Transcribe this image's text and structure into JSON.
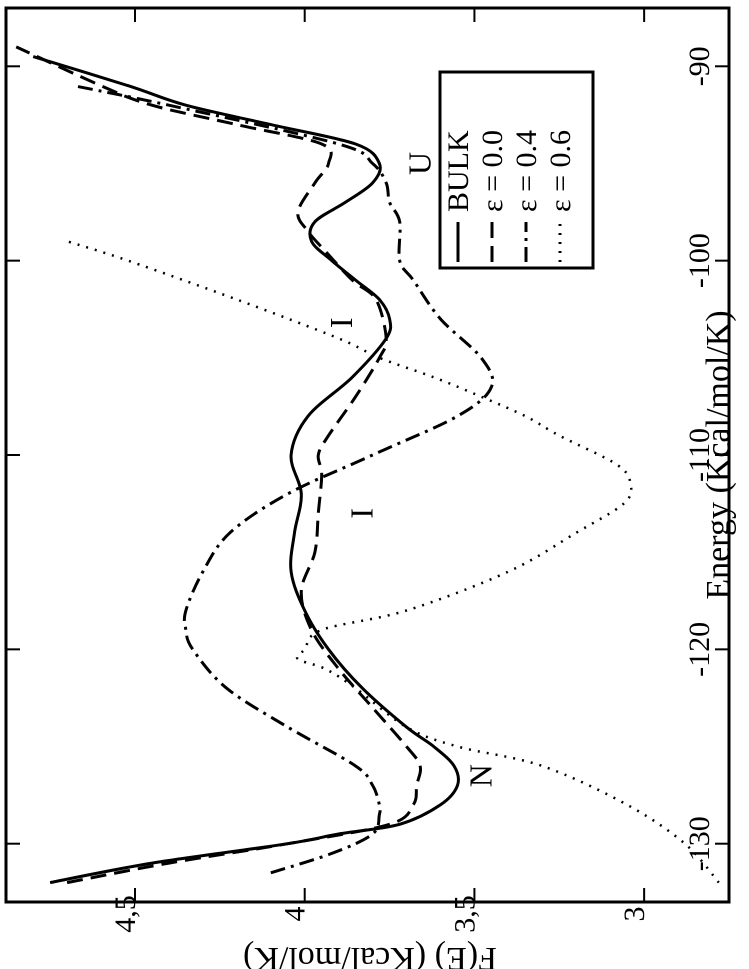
{
  "chart_data": {
    "type": "line",
    "orientation": "rotated-90-cw",
    "xlabel": "Energy (Kcal/mol/K)",
    "ylabel": "F(E) (Kcal/mol/K)",
    "xlim": [
      -133,
      -87
    ],
    "ylim": [
      2.75,
      4.88
    ],
    "x_ticks": [
      -130,
      -120,
      -110,
      -100,
      -90
    ],
    "y_ticks": [
      3,
      3.5,
      4,
      4.5
    ],
    "x_tick_labels": [
      "-130",
      "-120",
      "-110",
      "-100",
      "-90"
    ],
    "y_tick_labels": [
      "3",
      "3,5",
      "4",
      "4,5"
    ],
    "legend_position": "bottom-right",
    "series": [
      {
        "name": "BULK",
        "style": "solid",
        "points": [
          [
            -132,
            4.75
          ],
          [
            -131,
            4.45
          ],
          [
            -130,
            4.05
          ],
          [
            -129.5,
            3.9
          ],
          [
            -129,
            3.72
          ],
          [
            -128,
            3.6
          ],
          [
            -127,
            3.55
          ],
          [
            -126,
            3.56
          ],
          [
            -125,
            3.62
          ],
          [
            -124,
            3.7
          ],
          [
            -122,
            3.83
          ],
          [
            -120,
            3.93
          ],
          [
            -118,
            4.0
          ],
          [
            -116,
            4.04
          ],
          [
            -114,
            4.03
          ],
          [
            -112,
            4.01
          ],
          [
            -110,
            4.04
          ],
          [
            -108,
            3.99
          ],
          [
            -106,
            3.86
          ],
          [
            -104,
            3.76
          ],
          [
            -103,
            3.75
          ],
          [
            -102,
            3.78
          ],
          [
            -101,
            3.85
          ],
          [
            -100,
            3.92
          ],
          [
            -99,
            3.98
          ],
          [
            -98,
            3.97
          ],
          [
            -97,
            3.88
          ],
          [
            -96,
            3.8
          ],
          [
            -95,
            3.78
          ],
          [
            -94,
            3.85
          ],
          [
            -93,
            4.1
          ],
          [
            -92,
            4.35
          ],
          [
            -91,
            4.52
          ],
          [
            -89.5,
            4.8
          ]
        ]
      },
      {
        "name": "ε = 0.0",
        "style": "dashed",
        "points": [
          [
            -132,
            4.7
          ],
          [
            -131,
            4.4
          ],
          [
            -130,
            4.05
          ],
          [
            -129,
            3.75
          ],
          [
            -128,
            3.68
          ],
          [
            -127,
            3.67
          ],
          [
            -126,
            3.66
          ],
          [
            -125,
            3.7
          ],
          [
            -123,
            3.8
          ],
          [
            -121,
            3.9
          ],
          [
            -119,
            3.98
          ],
          [
            -117,
            4.01
          ],
          [
            -115,
            3.97
          ],
          [
            -113,
            3.96
          ],
          [
            -111,
            3.95
          ],
          [
            -110,
            3.96
          ],
          [
            -109,
            3.93
          ],
          [
            -107,
            3.85
          ],
          [
            -105,
            3.78
          ],
          [
            -104,
            3.76
          ],
          [
            -102,
            3.79
          ],
          [
            -101,
            3.86
          ],
          [
            -99.5,
            3.94
          ],
          [
            -98.5,
            3.99
          ],
          [
            -97.5,
            4.02
          ],
          [
            -96,
            3.97
          ],
          [
            -95,
            3.93
          ],
          [
            -94,
            3.95
          ],
          [
            -93,
            4.2
          ],
          [
            -92,
            4.45
          ],
          [
            -91,
            4.6
          ],
          [
            -89,
            4.85
          ]
        ]
      },
      {
        "name": "ε = 0.4",
        "style": "dash-dot",
        "points": [
          [
            -131.5,
            4.1
          ],
          [
            -130.5,
            3.92
          ],
          [
            -129.5,
            3.8
          ],
          [
            -128.5,
            3.78
          ],
          [
            -128,
            3.78
          ],
          [
            -127,
            3.8
          ],
          [
            -126,
            3.85
          ],
          [
            -124,
            4.05
          ],
          [
            -122,
            4.23
          ],
          [
            -120,
            4.33
          ],
          [
            -119,
            4.35
          ],
          [
            -118,
            4.35
          ],
          [
            -116,
            4.3
          ],
          [
            -114,
            4.22
          ],
          [
            -112,
            4.05
          ],
          [
            -110,
            3.8
          ],
          [
            -108,
            3.55
          ],
          [
            -106.5,
            3.45
          ],
          [
            -105,
            3.48
          ],
          [
            -103,
            3.6
          ],
          [
            -101,
            3.68
          ],
          [
            -100,
            3.72
          ],
          [
            -98,
            3.72
          ],
          [
            -97,
            3.75
          ],
          [
            -96,
            3.76
          ],
          [
            -95,
            3.8
          ],
          [
            -94,
            3.9
          ],
          [
            -92,
            4.4
          ],
          [
            -91,
            4.68
          ]
        ]
      },
      {
        "name": "ε = 0.6",
        "style": "dotted",
        "points": [
          [
            -132,
            2.78
          ],
          [
            -130,
            2.88
          ],
          [
            -128,
            3.05
          ],
          [
            -126,
            3.3
          ],
          [
            -125,
            3.55
          ],
          [
            -124,
            3.7
          ],
          [
            -122,
            3.85
          ],
          [
            -121,
            3.94
          ],
          [
            -120.5,
            4.02
          ],
          [
            -120,
            4.0
          ],
          [
            -119,
            3.95
          ],
          [
            -118,
            3.7
          ],
          [
            -116,
            3.4
          ],
          [
            -114,
            3.2
          ],
          [
            -112.5,
            3.06
          ],
          [
            -111.5,
            3.04
          ],
          [
            -110.5,
            3.08
          ],
          [
            -109,
            3.25
          ],
          [
            -108,
            3.35
          ],
          [
            -107,
            3.48
          ],
          [
            -106,
            3.62
          ],
          [
            -105,
            3.78
          ],
          [
            -104,
            3.9
          ],
          [
            -102,
            4.2
          ],
          [
            -100,
            4.52
          ],
          [
            -99,
            4.7
          ]
        ]
      }
    ],
    "annotations": [
      {
        "text": "U",
        "x": -95,
        "y": 3.63
      },
      {
        "text": "I",
        "x": -103.2,
        "y": 3.86
      },
      {
        "text": "I",
        "x": -113,
        "y": 3.8
      },
      {
        "text": "N",
        "x": -126.5,
        "y": 3.45
      }
    ]
  }
}
